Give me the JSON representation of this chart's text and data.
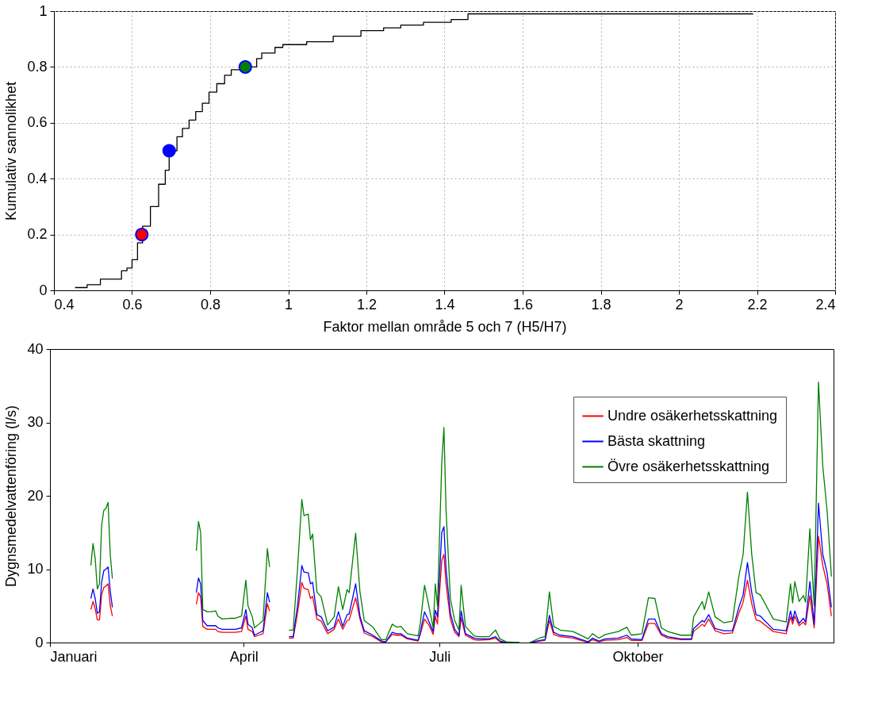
{
  "chart_data": [
    {
      "type": "step",
      "xlabel": "Faktor mellan område 5 och 7 (H5/H7)",
      "ylabel": "Kumulativ sannolikhet",
      "xlim": [
        0.4,
        2.4
      ],
      "ylim": [
        0,
        1
      ],
      "xticks": [
        0.4,
        0.6,
        0.8,
        1,
        1.2,
        1.4,
        1.6,
        1.8,
        2,
        2.2,
        2.4
      ],
      "yticks": [
        0,
        0.2,
        0.4,
        0.6,
        0.8,
        1
      ],
      "grid": true,
      "series": [
        {
          "color": "#000000",
          "x": [
            0.454,
            0.485,
            0.519,
            0.573,
            0.587,
            0.6,
            0.614,
            0.627,
            0.647,
            0.668,
            0.685,
            0.695,
            0.715,
            0.729,
            0.746,
            0.763,
            0.78,
            0.797,
            0.817,
            0.837,
            0.854,
            0.892,
            0.919,
            0.932,
            0.966,
            0.986,
            1.047,
            1.115,
            1.186,
            1.244,
            1.288,
            1.346,
            1.417,
            1.46,
            2.19
          ],
          "values": [
            0.01,
            0.02,
            0.04,
            0.07,
            0.08,
            0.11,
            0.17,
            0.23,
            0.3,
            0.38,
            0.43,
            0.5,
            0.55,
            0.58,
            0.61,
            0.64,
            0.67,
            0.71,
            0.74,
            0.77,
            0.79,
            0.8,
            0.83,
            0.85,
            0.87,
            0.88,
            0.89,
            0.91,
            0.93,
            0.94,
            0.95,
            0.96,
            0.97,
            0.99,
            0.99
          ]
        },
        {
          "type": "scatter",
          "colors": [
            "#ff0000",
            "#0000ff",
            "#007f00"
          ],
          "x": [
            0.625,
            0.695,
            0.89
          ],
          "values": [
            0.2,
            0.5,
            0.8
          ]
        }
      ]
    },
    {
      "type": "line",
      "ylabel": "Dygnsmedelvattenföring (l/s)",
      "ylim": [
        0,
        40
      ],
      "yticks": [
        0,
        10,
        20,
        30,
        40
      ],
      "xlim": [
        "--01-01",
        "--12-31"
      ],
      "xticks": [
        {
          "value": "--01-01",
          "label": "Januari"
        },
        {
          "value": "--04-01",
          "label": "April"
        },
        {
          "value": "--07-01",
          "label": "Juli"
        },
        {
          "value": "--10-01",
          "label": "Oktober"
        }
      ],
      "legend": "top right",
      "x": [
        "--01-20",
        "--01-21",
        "--01-22",
        "--01-23",
        "--01-24",
        "--01-25",
        "--01-26",
        "--01-27",
        "--01-28",
        "--01-29",
        "--01-30",
        "--02-15",
        "--03-10",
        "--03-11",
        "--03-12",
        "--03-13",
        "--03-15",
        "--03-17",
        "--03-19",
        "--03-20",
        "--03-22",
        "--03-26",
        "--03-28",
        "--03-31",
        "--04-02",
        "--04-03",
        "--04-05",
        "--04-06",
        "--04-08",
        "--04-10",
        "--04-12",
        "--04-13",
        "--04-17",
        "--04-22",
        "--04-24",
        "--04-26",
        "--04-28",
        "--04-29",
        "--05-01",
        "--05-02",
        "--05-03",
        "--05-05",
        "--05-07",
        "--05-10",
        "--05-13",
        "--05-15",
        "--05-17",
        "--05-19",
        "--05-20",
        "--05-23",
        "--05-25",
        "--05-27",
        "--05-31",
        "--06-04",
        "--06-06",
        "--06-09",
        "--06-11",
        "--06-13",
        "--06-16",
        "--06-21",
        "--06-22",
        "--06-24",
        "--06-26",
        "--06-28",
        "--06-29",
        "--06-30",
        "--07-02",
        "--07-03",
        "--07-04",
        "--07-06",
        "--07-08",
        "--07-10",
        "--07-11",
        "--07-13",
        "--07-17",
        "--07-19",
        "--07-24",
        "--07-27",
        "--07-29",
        "--08-01",
        "--08-07",
        "--08-09",
        "--08-12",
        "--08-17",
        "--08-19",
        "--08-21",
        "--08-23",
        "--08-26",
        "--09-01",
        "--09-08",
        "--09-10",
        "--09-13",
        "--09-16",
        "--09-22",
        "--09-26",
        "--09-28",
        "--10-03",
        "--10-06",
        "--10-09",
        "--10-12",
        "--10-15",
        "--10-21",
        "--10-26",
        "--10-27",
        "--10-31",
        "--11-01",
        "--11-03",
        "--11-06",
        "--11-10",
        "--11-14",
        "--11-17",
        "--11-19",
        "--11-21",
        "--11-23",
        "--11-25",
        "--11-27",
        "--12-03",
        "--12-09",
        "--12-11",
        "--12-12",
        "--12-13",
        "--12-15",
        "--12-17",
        "--12-18",
        "--12-20",
        "--12-22",
        "--12-23",
        "--12-24",
        "--12-26",
        "--12-28",
        "--12-30"
      ],
      "series": [
        {
          "name": "Undre osäkerhetsskattning",
          "color": "#ff0000",
          "values": [
            4.5,
            5.6,
            4.6,
            3.1,
            3.1,
            6.5,
            7.5,
            7.7,
            8,
            5,
            3.6,
            null,
            5.2,
            6.8,
            6.2,
            2.2,
            1.8,
            1.8,
            1.8,
            1.5,
            1.4,
            1.4,
            1.4,
            1.5,
            3.6,
            1.8,
            1.5,
            0.8,
            1,
            1.2,
            5.3,
            4.3,
            null,
            0.6,
            0.6,
            4,
            8.2,
            7.4,
            7.2,
            6,
            6.3,
            3.2,
            2.9,
            1.2,
            1.8,
            3.2,
            1.8,
            3,
            3.1,
            6.1,
            3.2,
            1.3,
            0.8,
            0.1,
            0.1,
            1.1,
            1,
            1,
            0.5,
            0.2,
            1.1,
            3.2,
            2.4,
            1.1,
            3.6,
            2.5,
            11.2,
            12,
            8,
            3.2,
            1.4,
            0.8,
            3.4,
            1,
            0.4,
            0.3,
            0.4,
            0.6,
            0.1,
            0,
            0,
            null,
            0,
            0.2,
            0.3,
            3,
            1.1,
            0.8,
            0.6,
            0,
            0.4,
            0.1,
            0.3,
            0.4,
            0.7,
            0.3,
            0.3,
            2.6,
            2.6,
            1,
            0.6,
            0.4,
            0.4,
            1.5,
            2.5,
            2.2,
            3.2,
            1.6,
            1.2,
            1.3,
            4,
            5.5,
            8.5,
            5.3,
            3.1,
            2.9,
            1.5,
            1.2,
            3.5,
            2.5,
            3.6,
            2.3,
            2.8,
            2.4,
            6.4,
            2,
            8,
            14.5,
            10.5,
            8,
            3.6
          ]
        },
        {
          "name": "Bästa skattning",
          "color": "#0000ff",
          "values": [
            6,
            7.3,
            6,
            4,
            4.2,
            8.2,
            9.8,
            10,
            10.3,
            7,
            4.8,
            null,
            6.8,
            8.8,
            8,
            3,
            2.3,
            2.3,
            2.3,
            2,
            1.8,
            1.8,
            1.8,
            2,
            4.5,
            2.5,
            2,
            1,
            1.3,
            1.6,
            6.8,
            5.5,
            null,
            0.8,
            0.8,
            5,
            10.5,
            9.6,
            9.5,
            8,
            8.2,
            3.8,
            3.5,
            1.6,
            2.1,
            4.2,
            2.2,
            3.8,
            3.9,
            8,
            3.6,
            1.6,
            1,
            0.2,
            0.1,
            1.4,
            1.2,
            1.2,
            0.6,
            0.3,
            1.3,
            4.2,
            2.9,
            1.5,
            4.4,
            3.5,
            15,
            15.8,
            10,
            4,
            1.8,
            1,
            4.3,
            1.2,
            0.6,
            0.5,
            0.5,
            0.8,
            0.2,
            0,
            0,
            null,
            0,
            0.3,
            0.4,
            3.7,
            1.4,
            1,
            0.8,
            0.1,
            0.6,
            0.2,
            0.5,
            0.6,
            1,
            0.5,
            0.4,
            3.2,
            3.2,
            1.2,
            0.8,
            0.5,
            0.5,
            1.9,
            3,
            2.8,
            3.8,
            1.9,
            1.6,
            1.6,
            4.8,
            6.5,
            10.9,
            6.8,
            3.8,
            3.6,
            1.8,
            1.6,
            4.3,
            3,
            4.3,
            2.6,
            3.3,
            2.8,
            8.3,
            2.5,
            10,
            19,
            12,
            9.5,
            4.8
          ]
        },
        {
          "name": "Övre osäkerhetsskattning",
          "color": "#008000",
          "values": [
            10.5,
            13.5,
            11.5,
            7.3,
            8,
            16,
            18,
            18.3,
            19.1,
            12,
            8.7,
            null,
            12.5,
            16.5,
            15,
            4.5,
            4.2,
            4.2,
            4.3,
            3.6,
            3.2,
            3.3,
            3.3,
            3.6,
            8.5,
            5,
            3.5,
            2,
            2.5,
            3,
            12.8,
            10.3,
            null,
            1.7,
            1.7,
            10,
            19.5,
            17.3,
            17.5,
            14,
            14.8,
            6.9,
            6.2,
            2.4,
            3.5,
            7.6,
            4.5,
            7.2,
            6.8,
            14.9,
            6.9,
            3,
            2.1,
            0.4,
            0.4,
            2.5,
            2.1,
            2.2,
            1.2,
            0.9,
            2.5,
            7.8,
            5,
            2,
            8,
            5,
            24.5,
            29.3,
            18,
            6,
            3,
            1.7,
            7.8,
            2.2,
            0.9,
            0.8,
            0.8,
            1.7,
            0.5,
            0.1,
            0,
            null,
            0,
            0.7,
            0.8,
            6.9,
            2.2,
            1.7,
            1.5,
            0.5,
            1.2,
            0.6,
            1.1,
            1.5,
            2.1,
            1,
            1.2,
            6.1,
            6,
            2,
            1.5,
            1,
            1,
            3.5,
            5.6,
            4.5,
            6.9,
            3.5,
            2.7,
            2.9,
            9,
            12,
            20.5,
            12,
            6.8,
            6.5,
            3.2,
            2.8,
            8,
            5.4,
            8.3,
            5.6,
            6.4,
            5.5,
            15.5,
            5,
            20,
            35.5,
            24,
            18,
            9
          ]
        }
      ]
    }
  ]
}
